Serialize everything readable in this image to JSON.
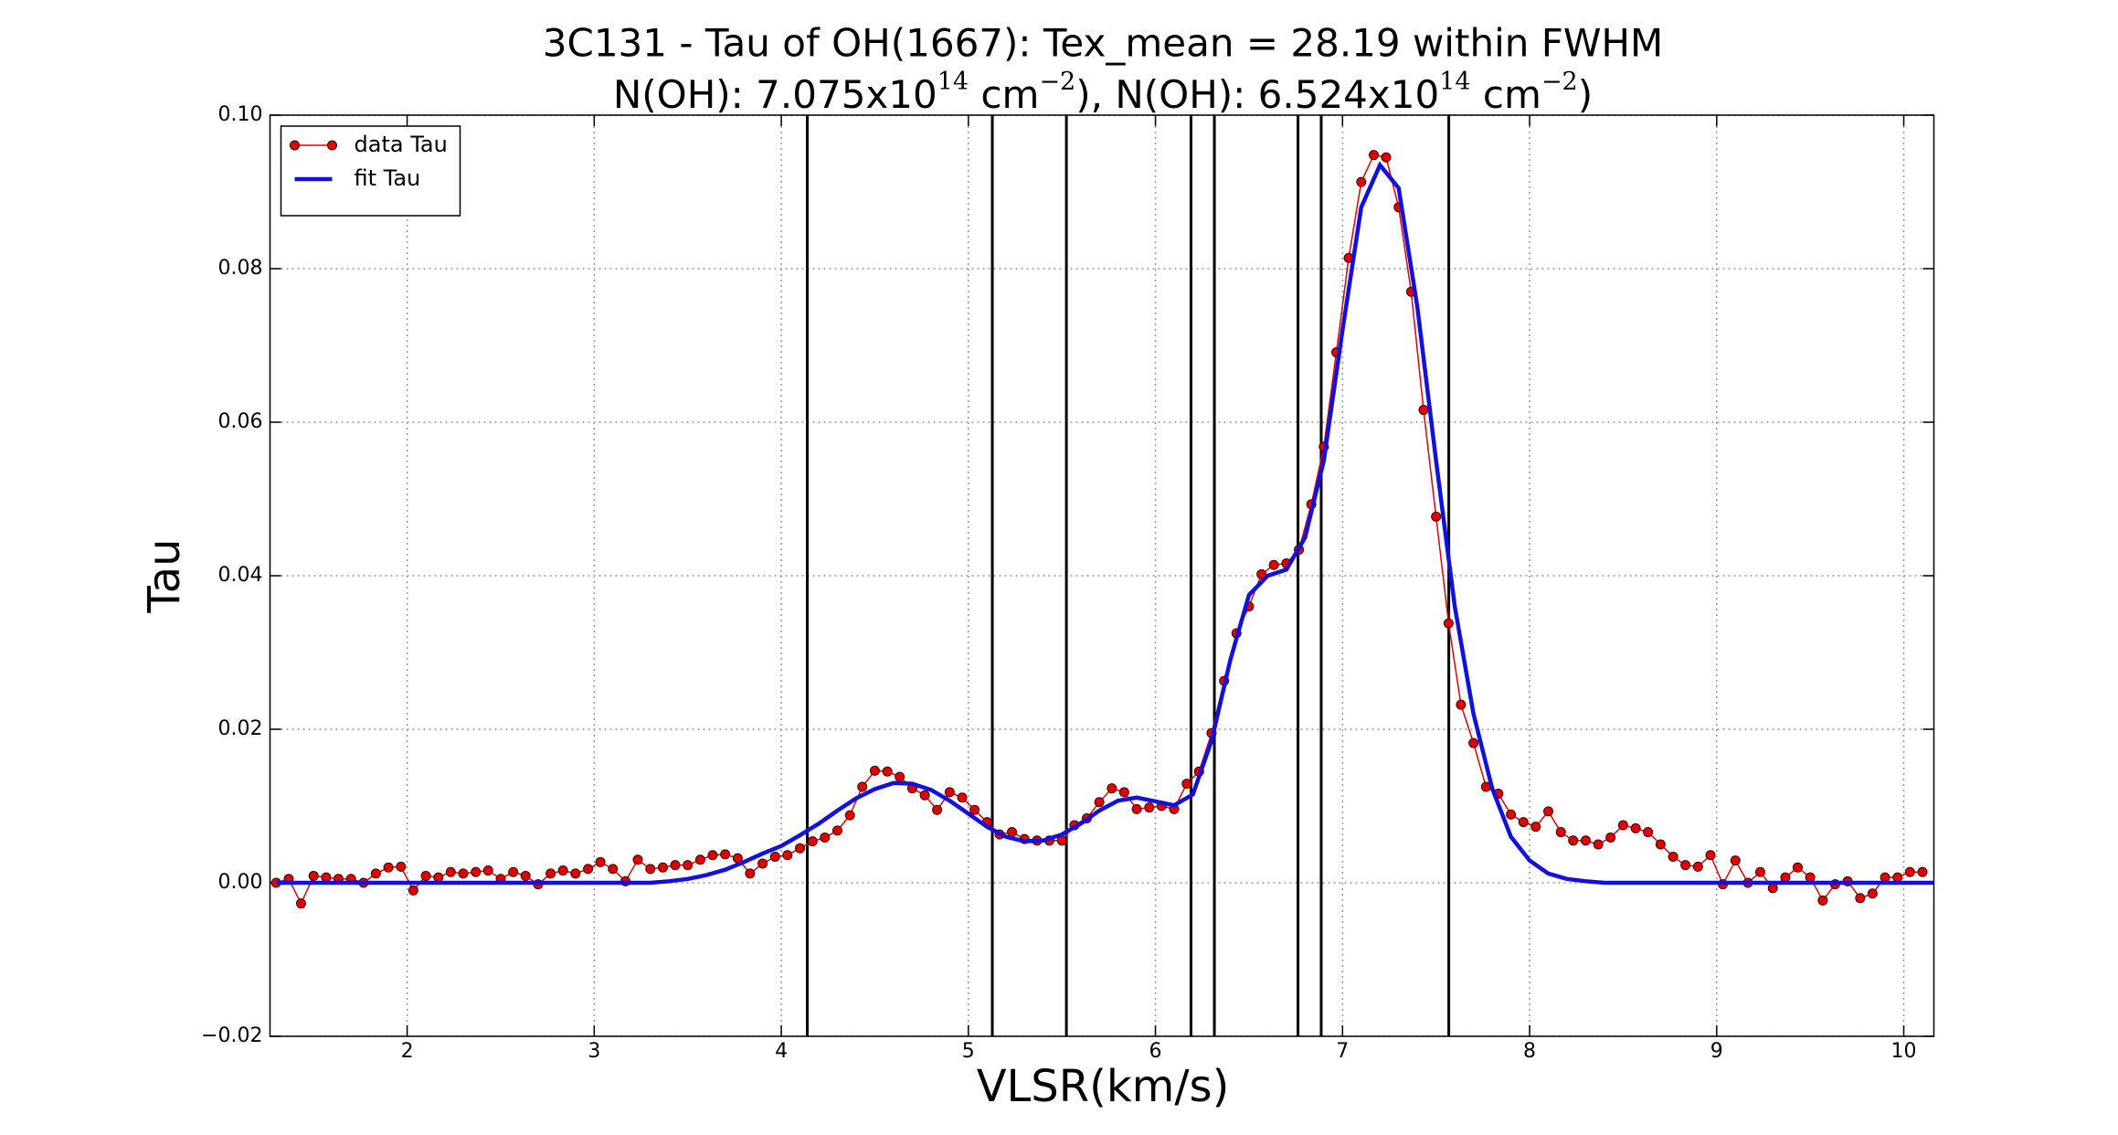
{
  "chart_data": {
    "type": "line",
    "title": "3C131 - Tau of OH(1667): Tex_mean = 28.19 within FWHM",
    "subtitle": [
      "N(OH): 7.075x10",
      "14",
      " cm",
      "−2",
      "), N(OH): 6.524x10",
      "14",
      " cm",
      "−2",
      ")"
    ],
    "xlabel": "VLSR(km/s)",
    "ylabel": "Tau",
    "xlim": [
      1.267,
      10.161
    ],
    "ylim": [
      -0.02,
      0.1
    ],
    "xticks": [
      2,
      3,
      4,
      5,
      6,
      7,
      8,
      9,
      10
    ],
    "yticks": [
      {
        "value": -0.02,
        "label": "−0.02"
      },
      {
        "value": 0,
        "label": "0.00"
      },
      {
        "value": 0.02,
        "label": "0.02"
      },
      {
        "value": 0.04,
        "label": "0.04"
      },
      {
        "value": 0.06,
        "label": "0.06"
      },
      {
        "value": 0.08,
        "label": "0.08"
      },
      {
        "value": 0.1,
        "label": "0.10"
      }
    ],
    "grid": true,
    "legend": "upper left",
    "vlines": [
      4.139,
      5.128,
      5.524,
      6.19,
      6.315,
      6.762,
      6.886,
      7.568
    ],
    "vline_color": "#000000",
    "series": [
      {
        "name": "data Tau",
        "color": "#e00000",
        "marker": true,
        "x": [
          1.3,
          1.367,
          1.433,
          1.5,
          1.567,
          1.633,
          1.7,
          1.767,
          1.833,
          1.9,
          1.967,
          2.033,
          2.1,
          2.167,
          2.233,
          2.3,
          2.367,
          2.433,
          2.5,
          2.567,
          2.633,
          2.7,
          2.767,
          2.833,
          2.9,
          2.967,
          3.033,
          3.1,
          3.167,
          3.233,
          3.3,
          3.367,
          3.433,
          3.5,
          3.567,
          3.633,
          3.7,
          3.767,
          3.833,
          3.9,
          3.967,
          4.033,
          4.1,
          4.167,
          4.233,
          4.3,
          4.367,
          4.433,
          4.5,
          4.567,
          4.633,
          4.7,
          4.767,
          4.833,
          4.9,
          4.967,
          5.033,
          5.1,
          5.167,
          5.233,
          5.3,
          5.367,
          5.433,
          5.5,
          5.567,
          5.633,
          5.7,
          5.767,
          5.833,
          5.9,
          5.967,
          6.033,
          6.1,
          6.167,
          6.233,
          6.3,
          6.367,
          6.433,
          6.5,
          6.567,
          6.633,
          6.7,
          6.767,
          6.833,
          6.9,
          6.967,
          7.033,
          7.1,
          7.167,
          7.233,
          7.3,
          7.367,
          7.433,
          7.5,
          7.567,
          7.633,
          7.7,
          7.767,
          7.833,
          7.9,
          7.967,
          8.033,
          8.1,
          8.167,
          8.233,
          8.3,
          8.367,
          8.433,
          8.5,
          8.567,
          8.633,
          8.7,
          8.767,
          8.833,
          8.9,
          8.967,
          9.033,
          9.1,
          9.167,
          9.233,
          9.3,
          9.367,
          9.433,
          9.5,
          9.567,
          9.633,
          9.7,
          9.767,
          9.833,
          9.9,
          9.967,
          10.033,
          10.1
        ],
        "values": [
          0,
          0.0005,
          -0.0027,
          0.0009,
          0.0007,
          0.0005,
          0.0005,
          0,
          0.0012,
          0.002,
          0.0021,
          -0.001,
          0.0009,
          0.0007,
          0.0014,
          0.0012,
          0.0014,
          0.0016,
          0.0005,
          0.0014,
          0.0009,
          -0.0002,
          0.0012,
          0.0016,
          0.0012,
          0.0018,
          0.0027,
          0.0018,
          0.0002,
          0.003,
          0.0018,
          0.002,
          0.0023,
          0.0023,
          0.003,
          0.0036,
          0.0037,
          0.0032,
          0.0012,
          0.0025,
          0.0034,
          0.0036,
          0.0045,
          0.0054,
          0.0059,
          0.0068,
          0.0088,
          0.0125,
          0.0146,
          0.0145,
          0.0138,
          0.0123,
          0.0114,
          0.0095,
          0.0118,
          0.0111,
          0.0095,
          0.0079,
          0.0063,
          0.0066,
          0.0057,
          0.0055,
          0.0055,
          0.0055,
          0.0075,
          0.0084,
          0.0105,
          0.0123,
          0.0118,
          0.0096,
          0.0098,
          0.01,
          0.0096,
          0.0129,
          0.0145,
          0.0195,
          0.0263,
          0.0325,
          0.036,
          0.0402,
          0.0414,
          0.0416,
          0.0434,
          0.0493,
          0.0568,
          0.0691,
          0.0814,
          0.0913,
          0.0948,
          0.0945,
          0.088,
          0.077,
          0.0616,
          0.0477,
          0.0338,
          0.0232,
          0.0182,
          0.0125,
          0.0116,
          0.0089,
          0.0079,
          0.0073,
          0.0093,
          0.0066,
          0.0055,
          0.0055,
          0.005,
          0.0059,
          0.0075,
          0.0071,
          0.0066,
          0.005,
          0.0034,
          0.0023,
          0.0021,
          0.0036,
          -0.0002,
          0.0029,
          0,
          0.0014,
          -0.0007,
          0.0007,
          0.002,
          0.0007,
          -0.0023,
          -0.0002,
          0.0002,
          -0.002,
          -0.0014,
          0.0007,
          0.0007,
          0.0014,
          0.0014
        ]
      },
      {
        "name": "fit Tau",
        "color": "#1010e0",
        "marker": false,
        "x": [
          1.3,
          3.3,
          3.4,
          3.5,
          3.6,
          3.7,
          3.8,
          3.9,
          4.0,
          4.1,
          4.2,
          4.3,
          4.4,
          4.5,
          4.6,
          4.7,
          4.8,
          4.9,
          5.0,
          5.1,
          5.2,
          5.3,
          5.4,
          5.5,
          5.6,
          5.7,
          5.8,
          5.9,
          6.0,
          6.1,
          6.2,
          6.3,
          6.4,
          6.5,
          6.6,
          6.7,
          6.8,
          6.9,
          7.0,
          7.1,
          7.2,
          7.3,
          7.4,
          7.5,
          7.6,
          7.7,
          7.8,
          7.9,
          8.0,
          8.1,
          8.2,
          8.3,
          8.4,
          10.161
        ],
        "values": [
          0,
          0,
          0.0002,
          0.0005,
          0.001,
          0.0017,
          0.0027,
          0.0038,
          0.0048,
          0.0062,
          0.0077,
          0.0094,
          0.011,
          0.0122,
          0.013,
          0.0129,
          0.0121,
          0.0107,
          0.009,
          0.0073,
          0.006,
          0.0054,
          0.0055,
          0.0063,
          0.0077,
          0.0094,
          0.0107,
          0.0111,
          0.0106,
          0.0101,
          0.0115,
          0.0185,
          0.029,
          0.0375,
          0.04,
          0.0408,
          0.045,
          0.055,
          0.072,
          0.088,
          0.0935,
          0.0905,
          0.075,
          0.055,
          0.036,
          0.022,
          0.0123,
          0.006,
          0.0029,
          0.0012,
          0.0005,
          0.0002,
          0,
          0
        ]
      }
    ]
  }
}
